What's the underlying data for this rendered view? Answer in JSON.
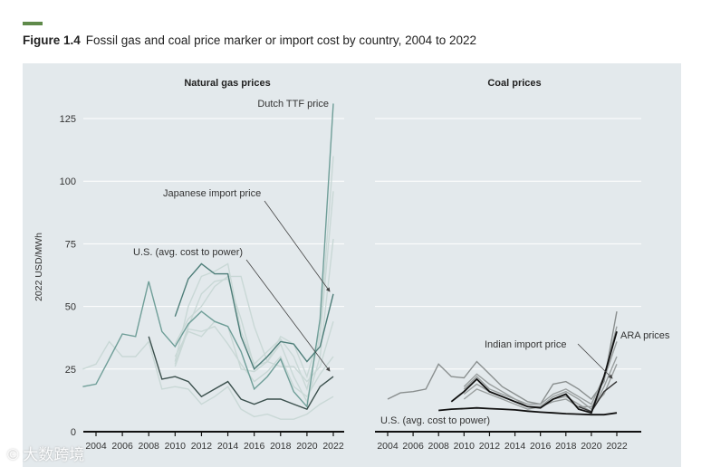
{
  "figure": {
    "number": "Figure 1.4",
    "caption": "Fossil gas and coal price marker or import cost by country, 2004 to 2022"
  },
  "watermark": "大数跨境",
  "chart_data": [
    {
      "type": "line",
      "title": "Natural gas prices",
      "ylabel": "2022 USD/MWh",
      "ylim": [
        0,
        125
      ],
      "yticks": [
        0,
        25,
        50,
        75,
        100,
        125
      ],
      "xticks": [
        "2004",
        "2006",
        "2008",
        "2010",
        "2012",
        "2014",
        "2016",
        "2018",
        "2020",
        "2022"
      ],
      "grid": true,
      "annotations": [
        "Dutch TTF price",
        "Japanese import price",
        "U.S. (avg. cost to power)"
      ],
      "series": [
        {
          "name": "other-1",
          "color": "#c9d8d6",
          "x": [
            2003,
            2004,
            2005,
            2006,
            2007,
            2008,
            2009,
            2010,
            2011,
            2012,
            2013,
            2014,
            2015,
            2016,
            2017,
            2018,
            2019,
            2020,
            2021,
            2022
          ],
          "values": [
            25,
            27,
            36,
            30,
            30,
            36,
            17,
            18,
            17,
            11,
            14,
            18,
            9,
            6,
            7,
            5,
            5,
            7,
            11,
            14
          ]
        },
        {
          "name": "other-2",
          "color": "#c9d8d6",
          "x": [
            2010,
            2011,
            2012,
            2013,
            2014,
            2015,
            2016,
            2017,
            2018,
            2019,
            2020,
            2021,
            2022
          ],
          "values": [
            27,
            42,
            55,
            60,
            61,
            45,
            26,
            28,
            38,
            35,
            22,
            40,
            110
          ]
        },
        {
          "name": "other-3",
          "color": "#c9d8d6",
          "x": [
            2010,
            2011,
            2012,
            2013,
            2014,
            2015,
            2016,
            2017,
            2018,
            2019,
            2020,
            2021,
            2022
          ],
          "values": [
            28,
            50,
            62,
            64,
            67,
            40,
            27,
            32,
            37,
            30,
            17,
            38,
            96
          ]
        },
        {
          "name": "other-4",
          "color": "#c9d8d6",
          "x": [
            2010,
            2011,
            2012,
            2013,
            2014,
            2015,
            2016,
            2017,
            2018,
            2019,
            2020,
            2021,
            2022
          ],
          "values": [
            30,
            40,
            38,
            44,
            42,
            25,
            24,
            28,
            35,
            22,
            12,
            30,
            77
          ]
        },
        {
          "name": "other-5",
          "color": "#c9d8d6",
          "x": [
            2010,
            2011,
            2012,
            2013,
            2014,
            2015,
            2016,
            2017,
            2018,
            2019,
            2020,
            2021,
            2022
          ],
          "values": [
            35,
            45,
            50,
            58,
            62,
            62,
            42,
            28,
            26,
            26,
            20,
            26,
            44
          ]
        },
        {
          "name": "other-6",
          "color": "#c9d8d6",
          "x": [
            2010,
            2011,
            2012,
            2013,
            2014,
            2015,
            2016,
            2017,
            2018,
            2019,
            2020,
            2021,
            2022
          ],
          "values": [
            26,
            41,
            40,
            42,
            35,
            27,
            20,
            24,
            30,
            18,
            14,
            23,
            30
          ]
        },
        {
          "name": "Dutch TTF",
          "color": "#6f9e98",
          "x": [
            2003,
            2004,
            2005,
            2006,
            2007,
            2008,
            2009,
            2010,
            2011,
            2012,
            2013,
            2014,
            2015,
            2016,
            2017,
            2018,
            2019,
            2020,
            2021,
            2022
          ],
          "values": [
            18,
            19,
            29,
            39,
            38,
            60,
            40,
            34,
            43,
            48,
            44,
            42,
            32,
            17,
            22,
            29,
            16,
            10,
            45,
            131
          ]
        },
        {
          "name": "Japanese import",
          "color": "#4d7d78",
          "x": [
            2010,
            2011,
            2012,
            2013,
            2014,
            2015,
            2016,
            2017,
            2018,
            2019,
            2020,
            2021,
            2022
          ],
          "values": [
            46,
            61,
            67,
            63,
            63,
            38,
            25,
            30,
            36,
            35,
            28,
            34,
            55
          ]
        },
        {
          "name": "U.S.",
          "color": "#3a4f4c",
          "x": [
            2008,
            2009,
            2010,
            2011,
            2012,
            2013,
            2014,
            2015,
            2016,
            2017,
            2018,
            2019,
            2020,
            2021,
            2022
          ],
          "values": [
            38,
            21,
            22,
            20,
            14,
            17,
            20,
            13,
            11,
            13,
            13,
            11,
            9,
            18,
            22
          ]
        }
      ]
    },
    {
      "type": "line",
      "title": "Coal prices",
      "ylim": [
        0,
        125
      ],
      "xticks": [
        "2004",
        "2006",
        "2008",
        "2010",
        "2012",
        "2014",
        "2016",
        "2018",
        "2020",
        "2022"
      ],
      "grid": true,
      "annotations": [
        "Indian import price",
        "ARA prices",
        "U.S. (avg. cost to power)"
      ],
      "series": [
        {
          "name": "other-long",
          "color": "#8a8f8f",
          "x": [
            2004,
            2005,
            2006,
            2007,
            2008,
            2009,
            2010,
            2011,
            2012,
            2013,
            2014,
            2015,
            2016,
            2017,
            2018,
            2019,
            2020,
            2021,
            2022
          ],
          "values": [
            13,
            15.5,
            16,
            17,
            27,
            22,
            21.5,
            28,
            23,
            18,
            15,
            12,
            11,
            19,
            20,
            17,
            13,
            20,
            48
          ]
        },
        {
          "name": "other-1",
          "color": "#9a9f9f",
          "x": [
            2010,
            2011,
            2012,
            2013,
            2014,
            2015,
            2016,
            2017,
            2018,
            2019,
            2020,
            2021,
            2022
          ],
          "values": [
            18,
            23,
            19,
            16,
            13,
            11,
            11,
            15,
            17,
            14,
            11,
            22,
            42
          ]
        },
        {
          "name": "other-2",
          "color": "#9a9f9f",
          "x": [
            2010,
            2011,
            2012,
            2013,
            2014,
            2015,
            2016,
            2017,
            2018,
            2019,
            2020,
            2021,
            2022
          ],
          "values": [
            17,
            22,
            17,
            15,
            13,
            10,
            10,
            14,
            16,
            13,
            9,
            21,
            36
          ]
        },
        {
          "name": "other-3",
          "color": "#9a9f9f",
          "x": [
            2010,
            2011,
            2012,
            2013,
            2014,
            2015,
            2016,
            2017,
            2018,
            2019,
            2020,
            2021,
            2022
          ],
          "values": [
            15,
            19,
            16,
            14,
            12,
            10,
            10,
            13,
            14,
            11,
            8,
            18,
            30
          ]
        },
        {
          "name": "other-4",
          "color": "#9a9f9f",
          "x": [
            2010,
            2011,
            2012,
            2013,
            2014,
            2015,
            2016,
            2017,
            2018,
            2019,
            2020,
            2021,
            2022
          ],
          "values": [
            13,
            17,
            15,
            13,
            11,
            9,
            10,
            12,
            13,
            10,
            10,
            15,
            27
          ]
        },
        {
          "name": "other-dark",
          "color": "#333",
          "x": [
            2019,
            2020,
            2021,
            2022
          ],
          "values": [
            10,
            8,
            16,
            20
          ]
        },
        {
          "name": "ARA/Indian",
          "color": "#111",
          "x": [
            2009,
            2010,
            2011,
            2012,
            2013,
            2014,
            2015,
            2016,
            2017,
            2018,
            2019,
            2020,
            2021,
            2022
          ],
          "values": [
            12,
            16,
            21,
            16,
            14,
            12,
            10,
            9.5,
            13,
            15,
            9,
            7.5,
            22,
            40
          ]
        },
        {
          "name": "U.S.",
          "color": "#111",
          "x": [
            2008,
            2009,
            2010,
            2011,
            2012,
            2013,
            2014,
            2015,
            2016,
            2017,
            2018,
            2019,
            2020,
            2021,
            2022
          ],
          "values": [
            8.5,
            9,
            9.2,
            9.5,
            9.2,
            9,
            8.7,
            8.2,
            7.8,
            7.5,
            7.2,
            7,
            6.8,
            6.8,
            7.5
          ]
        }
      ]
    }
  ]
}
